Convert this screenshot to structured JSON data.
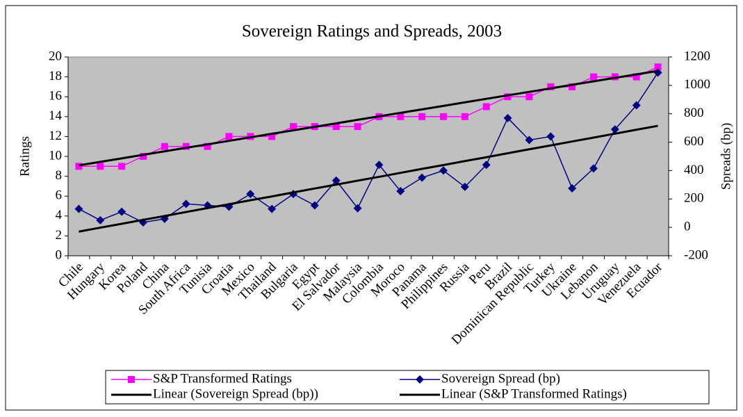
{
  "chart_data": {
    "type": "line",
    "title": "Sovereign Ratings and Spreads, 2003",
    "y_label": "Ratings",
    "y2_label": "Spreads (bp)",
    "categories": [
      "Chile",
      "Hungary",
      "Korea",
      "Poland",
      "China",
      "South Africa",
      "Tunisia",
      "Croatia",
      "Mexico",
      "Thailand",
      "Bulgaria",
      "Egypt",
      "El Salvador",
      "Malaysia",
      "Colombia",
      "Moroco",
      "Panama",
      "Philippines",
      "Russia",
      "Peru",
      "Brazil",
      "Dominican Republic",
      "Turkey",
      "Ukraine",
      "Lebanon",
      "Uruguay",
      "Venezuela",
      "Ecuador"
    ],
    "series": [
      {
        "name": "S&P Transformed Ratings",
        "color": "#ff00ff",
        "marker": "square",
        "axis": "y",
        "values": [
          9,
          9,
          9,
          10,
          11,
          11,
          11,
          12,
          12,
          12,
          13,
          13,
          13,
          13,
          14,
          14,
          14,
          14,
          14,
          15,
          16,
          16,
          17,
          17,
          18,
          18,
          18,
          19
        ]
      },
      {
        "name": "Sovereign Spread (bp)",
        "color": "#000080",
        "marker": "diamond",
        "axis": "y2",
        "values": [
          130,
          50,
          110,
          35,
          60,
          165,
          155,
          145,
          235,
          130,
          235,
          155,
          330,
          135,
          440,
          255,
          350,
          400,
          285,
          440,
          770,
          615,
          640,
          275,
          415,
          690,
          860,
          1090
        ]
      },
      {
        "name": "Linear (Sovereign Spread (bp))",
        "color": "#000000",
        "marker": null,
        "axis": "y2",
        "values": [
          -30,
          -2,
          25,
          53,
          80,
          108,
          136,
          163,
          191,
          218,
          246,
          274,
          301,
          329,
          356,
          384,
          412,
          439,
          467,
          494,
          522,
          550,
          577,
          605,
          632,
          660,
          688,
          715
        ]
      },
      {
        "name": "Linear (S&P Transformed Ratings)",
        "color": "#000000",
        "marker": null,
        "axis": "y",
        "values": [
          9.1,
          9.45,
          9.8,
          10.16,
          10.51,
          10.86,
          11.21,
          11.56,
          11.92,
          12.27,
          12.62,
          12.97,
          13.32,
          13.68,
          14.03,
          14.38,
          14.73,
          15.08,
          15.44,
          15.79,
          16.14,
          16.49,
          16.84,
          17.2,
          17.55,
          17.9,
          18.25,
          18.6
        ]
      }
    ],
    "ylim": [
      0,
      20
    ],
    "yticks": [
      0,
      2,
      4,
      6,
      8,
      10,
      12,
      14,
      16,
      18,
      20
    ],
    "y2lim": [
      -200,
      1200
    ],
    "y2ticks": [
      -200,
      0,
      200,
      400,
      600,
      800,
      1000,
      1200
    ],
    "plot_background": "#c0c0c0",
    "legend": "bottom"
  }
}
